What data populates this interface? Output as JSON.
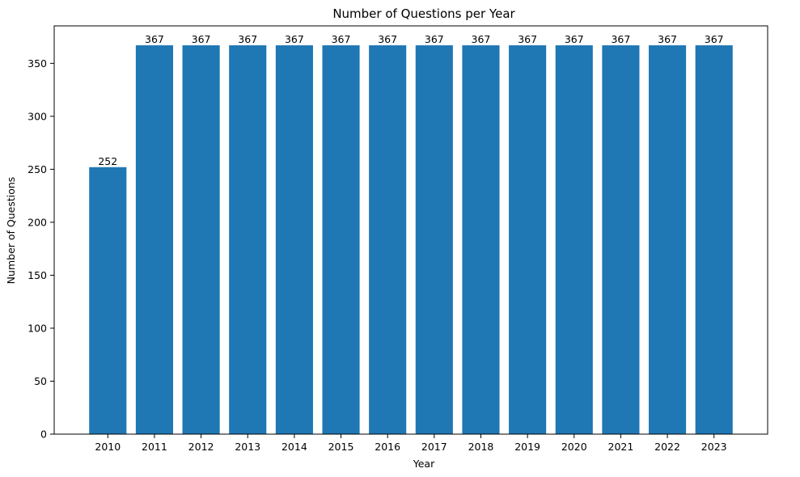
{
  "chart_data": {
    "type": "bar",
    "title": "Number of Questions per Year",
    "xlabel": "Year",
    "ylabel": "Number of Questions",
    "categories": [
      "2010",
      "2011",
      "2012",
      "2013",
      "2014",
      "2015",
      "2016",
      "2017",
      "2018",
      "2019",
      "2020",
      "2021",
      "2022",
      "2023"
    ],
    "values": [
      252,
      367,
      367,
      367,
      367,
      367,
      367,
      367,
      367,
      367,
      367,
      367,
      367,
      367
    ],
    "data_labels": [
      "252",
      "367",
      "367",
      "367",
      "367",
      "367",
      "367",
      "367",
      "367",
      "367",
      "367",
      "367",
      "367",
      "367"
    ],
    "ylim": [
      0,
      385.35
    ],
    "yticks": [
      0,
      50,
      100,
      150,
      200,
      250,
      300,
      350
    ],
    "ytick_labels": [
      "0",
      "50",
      "100",
      "150",
      "200",
      "250",
      "300",
      "350"
    ],
    "grid": false,
    "legend": "none",
    "colors": {
      "bar": "#1f77b4",
      "axis": "#000000",
      "text": "#000000",
      "background": "#ffffff"
    }
  }
}
